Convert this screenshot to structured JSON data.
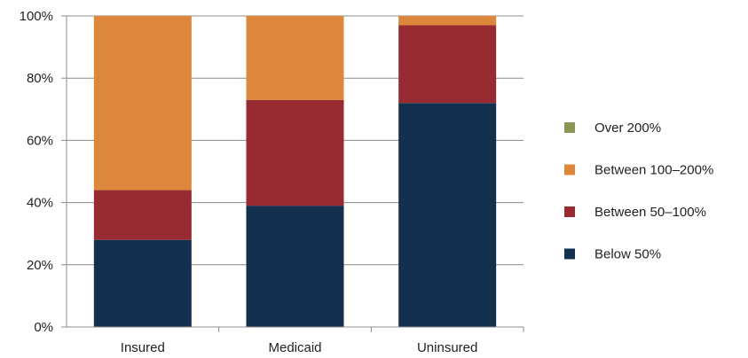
{
  "chart_data": {
    "type": "bar",
    "stacked": true,
    "categories": [
      "Insured",
      "Medicaid",
      "Uninsured"
    ],
    "series": [
      {
        "name": "Below 50%",
        "color": "#14304f",
        "values": [
          28,
          39,
          72
        ]
      },
      {
        "name": "Between 50–100%",
        "color": "#982b31",
        "values": [
          16,
          34,
          25
        ]
      },
      {
        "name": "Between 100–200%",
        "color": "#dc873c",
        "values": [
          56,
          27,
          3
        ]
      },
      {
        "name": "Over 200%",
        "color": "#8c9652",
        "values": [
          0,
          0,
          0
        ]
      }
    ],
    "title": "",
    "xlabel": "",
    "ylabel": "",
    "ylim": [
      0,
      100
    ],
    "yticks": [
      "0%",
      "20%",
      "40%",
      "60%",
      "80%",
      "100%"
    ],
    "grid": true,
    "legend_position": "right",
    "legend_order": [
      "Over 200%",
      "Between 100–200%",
      "Between 50–100%",
      "Below 50%"
    ]
  }
}
